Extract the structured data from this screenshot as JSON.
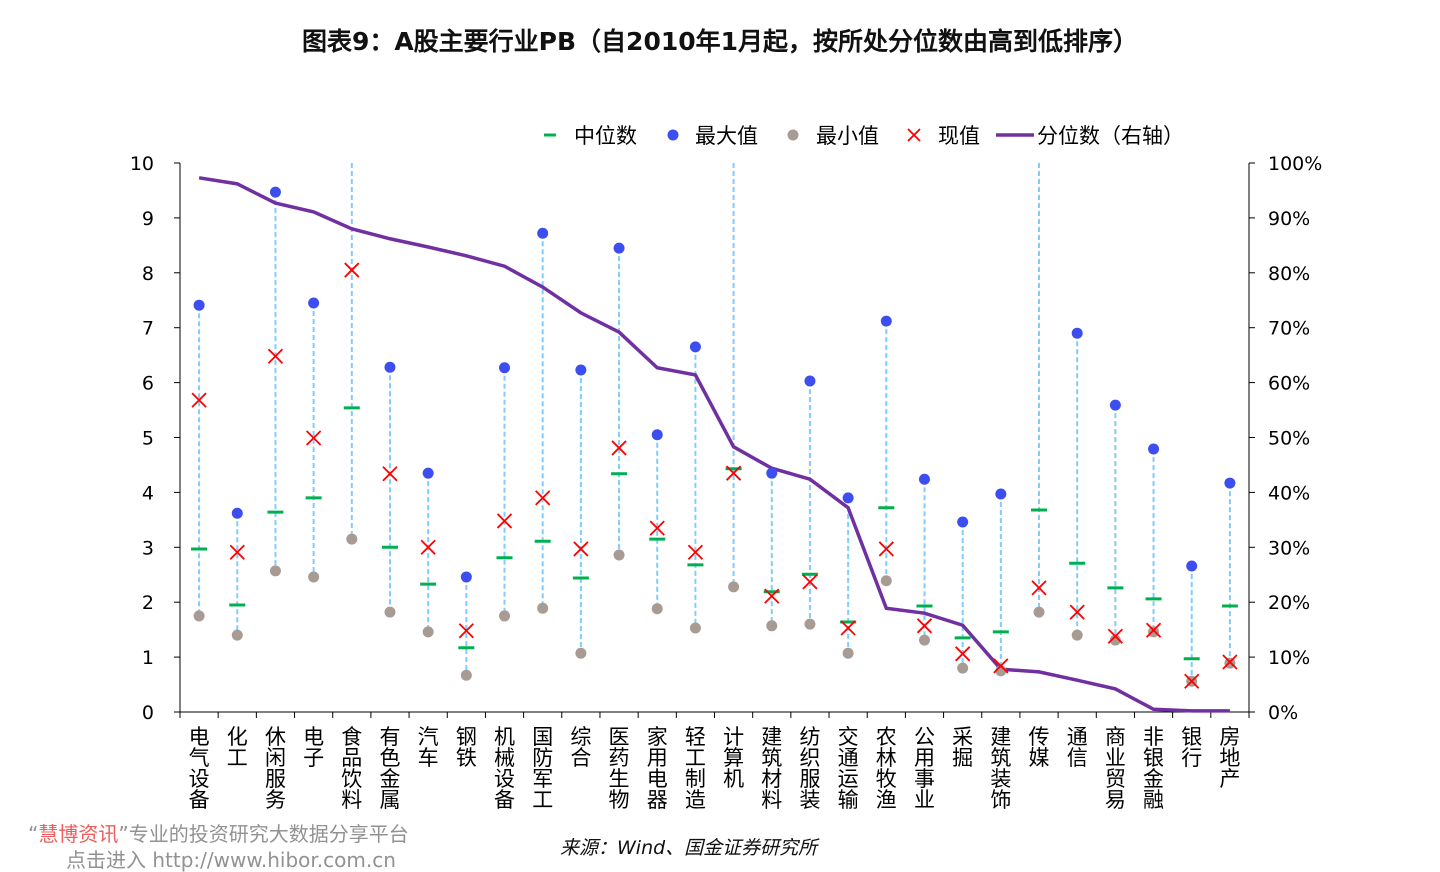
{
  "chart_data": {
    "type": "dot-range-line",
    "title": "图表9：A股主要行业PB（自2010年1月起，按所处分位数由高到低排序）",
    "categories": [
      "电气设备",
      "化工",
      "休闲服务",
      "电子",
      "食品饮料",
      "有色金属",
      "汽车",
      "钢铁",
      "机械设备",
      "国防军工",
      "综合",
      "医药生物",
      "家用电器",
      "轻工制造",
      "计算机",
      "建筑材料",
      "纺织服装",
      "交通运输",
      "农林牧渔",
      "公用事业",
      "采掘",
      "建筑装饰",
      "传媒",
      "通信",
      "商业贸易",
      "非银金融",
      "银行",
      "房地产"
    ],
    "series": [
      {
        "name": "中位数",
        "axis": "left",
        "marker": "dash",
        "color": "#00b050",
        "values": [
          2.97,
          1.95,
          3.64,
          3.9,
          5.54,
          3.0,
          2.33,
          1.17,
          2.81,
          3.11,
          2.44,
          4.34,
          3.15,
          2.68,
          4.43,
          2.19,
          2.51,
          1.64,
          3.72,
          1.93,
          1.35,
          1.46,
          3.68,
          2.71,
          2.26,
          2.06,
          0.97,
          1.93
        ]
      },
      {
        "name": "最大值",
        "axis": "left",
        "marker": "circle",
        "color": "#3d4ef0",
        "values": [
          7.41,
          3.62,
          9.47,
          7.45,
          null,
          6.28,
          4.35,
          2.46,
          6.27,
          8.72,
          6.23,
          8.45,
          5.05,
          6.65,
          null,
          4.35,
          6.03,
          3.9,
          7.12,
          4.24,
          3.46,
          3.97,
          null,
          6.9,
          5.59,
          4.79,
          2.66,
          4.17
        ]
      },
      {
        "name": "最小值",
        "axis": "left",
        "marker": "circle",
        "color": "#a89b94",
        "values": [
          1.75,
          1.4,
          2.57,
          2.46,
          3.15,
          1.82,
          1.46,
          0.67,
          1.75,
          1.89,
          1.07,
          2.86,
          1.88,
          1.53,
          2.28,
          1.57,
          1.6,
          1.07,
          2.39,
          1.31,
          0.8,
          0.75,
          1.82,
          1.4,
          1.31,
          1.46,
          0.56,
          0.89
        ]
      },
      {
        "name": "现值",
        "axis": "left",
        "marker": "x",
        "color": "#ff0000",
        "values": [
          5.68,
          2.91,
          6.48,
          4.99,
          8.05,
          4.34,
          3.0,
          1.48,
          3.48,
          3.9,
          2.97,
          4.81,
          3.35,
          2.91,
          4.35,
          2.11,
          2.37,
          1.53,
          2.97,
          1.57,
          1.06,
          0.84,
          2.26,
          1.82,
          1.38,
          1.49,
          0.56,
          0.91
        ]
      },
      {
        "name": "分位数（右轴）",
        "axis": "right",
        "marker": "line",
        "color": "#7030a0",
        "values": [
          97.3,
          96.2,
          92.7,
          91.1,
          88.0,
          86.2,
          84.7,
          83.1,
          81.2,
          77.4,
          72.7,
          69.2,
          62.7,
          61.4,
          48.3,
          44.4,
          42.4,
          37.2,
          18.9,
          18.0,
          15.8,
          7.8,
          7.3,
          5.8,
          4.2,
          0.5,
          0.2,
          0.2
        ]
      }
    ],
    "range_line_color": "#7fcdfb",
    "y_left": {
      "ylim": [
        0,
        10
      ],
      "ticks": [
        "0",
        "1",
        "2",
        "3",
        "4",
        "5",
        "6",
        "7",
        "8",
        "9",
        "10"
      ]
    },
    "y_right": {
      "ylim": [
        0,
        100
      ],
      "ticks": [
        "0%",
        "10%",
        "20%",
        "30%",
        "40%",
        "50%",
        "60%",
        "70%",
        "80%",
        "90%",
        "100%"
      ]
    },
    "legend_position": "top",
    "grid": false
  },
  "source": "来源：Wind、国金证券研究所",
  "watermark": {
    "quote_open": "“",
    "brand": "慧博资讯",
    "quote_close": "”",
    "text": "专业的投资研究大数据分享平台",
    "link": "点击进入 http://www.hibor.com.cn"
  }
}
